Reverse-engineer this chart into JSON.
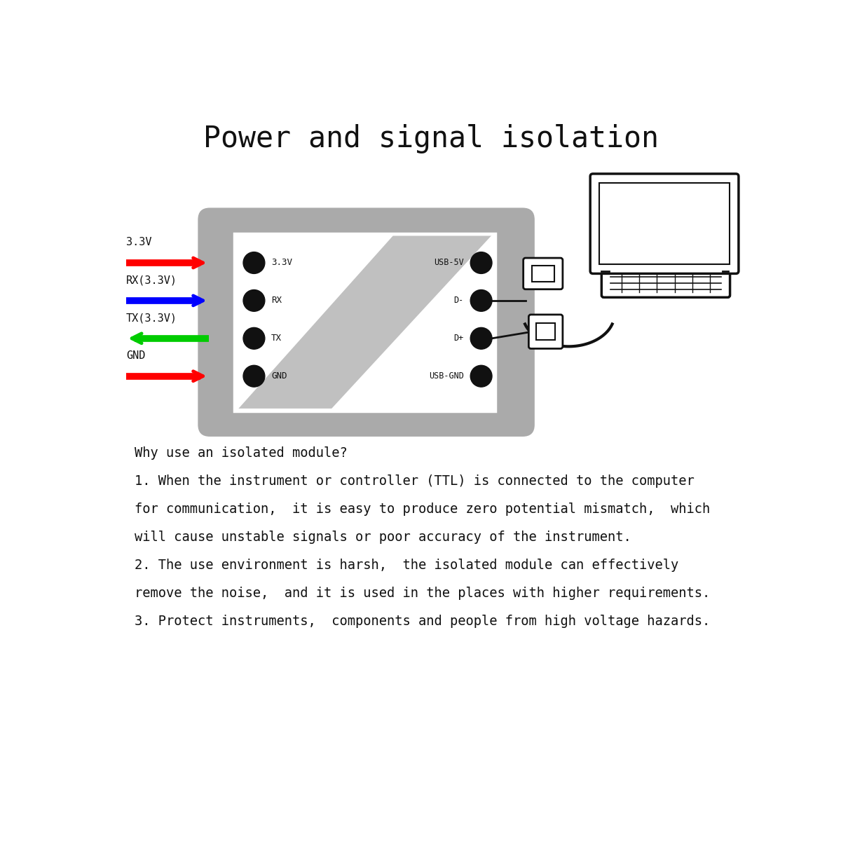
{
  "title": "Power and signal isolation",
  "title_fontsize": 30,
  "bg_color": "#ffffff",
  "module_color": "#aaaaaa",
  "left_dot_labels": [
    "3.3V",
    "RX",
    "TX",
    "GND"
  ],
  "right_dot_labels": [
    "USB-5V",
    "D-",
    "D+",
    "USB-GND"
  ],
  "arrow_colors": [
    "#ff0000",
    "#0000ff",
    "#00cc00",
    "#ff0000"
  ],
  "arrow_directions": [
    "right",
    "right",
    "left",
    "right"
  ],
  "pin_labels_left": [
    "3.3V",
    "RX(3.3V)",
    "TX(3.3V)",
    "GND"
  ],
  "text_lines": [
    "Why use an isolated module?",
    "1. When the instrument or controller (TTL) is connected to the computer",
    "for communication,  it is easy to produce zero potential mismatch,  which",
    "will cause unstable signals or poor accuracy of the instrument.",
    "2. The use environment is harsh,  the isolated module can effectively",
    "remove the noise,  and it is used in the places with higher requirements.",
    "3. Protect instruments,  components and people from high voltage hazards."
  ],
  "text_fontsize": 13.5
}
